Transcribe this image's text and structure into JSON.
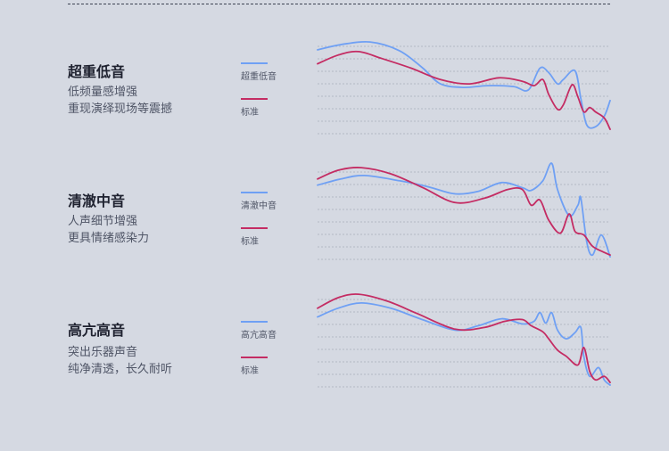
{
  "colors": {
    "enhanced": "#6fa0f4",
    "standard": "#c42c63",
    "grid": "#a9aebb"
  },
  "sections": [
    {
      "title": "超重低音",
      "desc": [
        "低频量感增强",
        "重现演绎现场等震撼"
      ],
      "legend": {
        "enhanced": "超重低音",
        "standard": "标准"
      }
    },
    {
      "title": "清澈中音",
      "desc": [
        "人声细节增强",
        "更具情绪感染力"
      ],
      "legend": {
        "enhanced": "清澈中音",
        "standard": "标准"
      }
    },
    {
      "title": "高亢高音",
      "desc": [
        "突出乐器声音",
        "纯净清透，长久耐听"
      ],
      "legend": {
        "enhanced": "高亢高音",
        "standard": "标准"
      }
    }
  ],
  "chart_data": [
    {
      "type": "line",
      "xlim": [
        0,
        100
      ],
      "ylim": [
        0,
        100
      ],
      "grid": true,
      "series": [
        {
          "name": "超重低音",
          "points": [
            [
              0,
              96
            ],
            [
              8,
              102
            ],
            [
              18,
              105
            ],
            [
              28,
              95
            ],
            [
              36,
              75
            ],
            [
              42,
              57
            ],
            [
              50,
              53
            ],
            [
              58,
              55
            ],
            [
              67,
              54
            ],
            [
              72,
              50
            ],
            [
              76,
              75
            ],
            [
              79,
              70
            ],
            [
              82,
              57
            ],
            [
              84,
              62
            ],
            [
              88,
              72
            ],
            [
              90,
              40
            ],
            [
              92,
              10
            ],
            [
              95,
              8
            ],
            [
              98,
              20
            ],
            [
              100,
              38
            ]
          ]
        },
        {
          "name": "标准",
          "points": [
            [
              0,
              80
            ],
            [
              7,
              90
            ],
            [
              14,
              94
            ],
            [
              22,
              86
            ],
            [
              32,
              75
            ],
            [
              42,
              62
            ],
            [
              52,
              57
            ],
            [
              62,
              64
            ],
            [
              70,
              60
            ],
            [
              74,
              55
            ],
            [
              77,
              62
            ],
            [
              79,
              45
            ],
            [
              82,
              28
            ],
            [
              84,
              33
            ],
            [
              87,
              56
            ],
            [
              89,
              42
            ],
            [
              91,
              25
            ],
            [
              93,
              30
            ],
            [
              95,
              25
            ],
            [
              98,
              18
            ],
            [
              100,
              5
            ]
          ]
        }
      ]
    },
    {
      "type": "line",
      "xlim": [
        0,
        100
      ],
      "ylim": [
        0,
        100
      ],
      "grid": true,
      "series": [
        {
          "name": "清澈中音",
          "points": [
            [
              0,
              85
            ],
            [
              8,
              92
            ],
            [
              16,
              96
            ],
            [
              28,
              90
            ],
            [
              38,
              83
            ],
            [
              47,
              75
            ],
            [
              55,
              78
            ],
            [
              63,
              88
            ],
            [
              70,
              82
            ],
            [
              73,
              79
            ],
            [
              77,
              90
            ],
            [
              80,
              110
            ],
            [
              82,
              80
            ],
            [
              86,
              50
            ],
            [
              89,
              62
            ],
            [
              90,
              70
            ],
            [
              92,
              20
            ],
            [
              94,
              5
            ],
            [
              97,
              28
            ],
            [
              100,
              3
            ]
          ]
        },
        {
          "name": "标准",
          "points": [
            [
              0,
              92
            ],
            [
              7,
              102
            ],
            [
              15,
              105
            ],
            [
              25,
              98
            ],
            [
              36,
              82
            ],
            [
              47,
              65
            ],
            [
              57,
              70
            ],
            [
              65,
              80
            ],
            [
              70,
              80
            ],
            [
              73,
              62
            ],
            [
              76,
              68
            ],
            [
              79,
              45
            ],
            [
              83,
              30
            ],
            [
              86,
              52
            ],
            [
              88,
              32
            ],
            [
              91,
              28
            ],
            [
              94,
              15
            ],
            [
              98,
              8
            ],
            [
              100,
              5
            ]
          ]
        }
      ]
    },
    {
      "type": "line",
      "xlim": [
        0,
        100
      ],
      "ylim": [
        0,
        100
      ],
      "grid": true,
      "series": [
        {
          "name": "高亢高音",
          "points": [
            [
              0,
              80
            ],
            [
              7,
              90
            ],
            [
              15,
              96
            ],
            [
              25,
              90
            ],
            [
              35,
              78
            ],
            [
              47,
              65
            ],
            [
              55,
              70
            ],
            [
              63,
              78
            ],
            [
              70,
              72
            ],
            [
              74,
              75
            ],
            [
              76,
              85
            ],
            [
              78,
              73
            ],
            [
              80,
              85
            ],
            [
              82,
              65
            ],
            [
              85,
              55
            ],
            [
              88,
              62
            ],
            [
              90,
              68
            ],
            [
              91,
              35
            ],
            [
              93,
              12
            ],
            [
              96,
              22
            ],
            [
              98,
              8
            ],
            [
              100,
              2
            ]
          ]
        },
        {
          "name": "标准",
          "points": [
            [
              0,
              90
            ],
            [
              7,
              102
            ],
            [
              14,
              106
            ],
            [
              24,
              98
            ],
            [
              34,
              84
            ],
            [
              47,
              66
            ],
            [
              57,
              68
            ],
            [
              64,
              75
            ],
            [
              70,
              77
            ],
            [
              73,
              70
            ],
            [
              77,
              63
            ],
            [
              79,
              55
            ],
            [
              82,
              42
            ],
            [
              85,
              35
            ],
            [
              89,
              25
            ],
            [
              91,
              45
            ],
            [
              93,
              18
            ],
            [
              95,
              8
            ],
            [
              98,
              12
            ],
            [
              100,
              5
            ]
          ]
        }
      ]
    }
  ]
}
